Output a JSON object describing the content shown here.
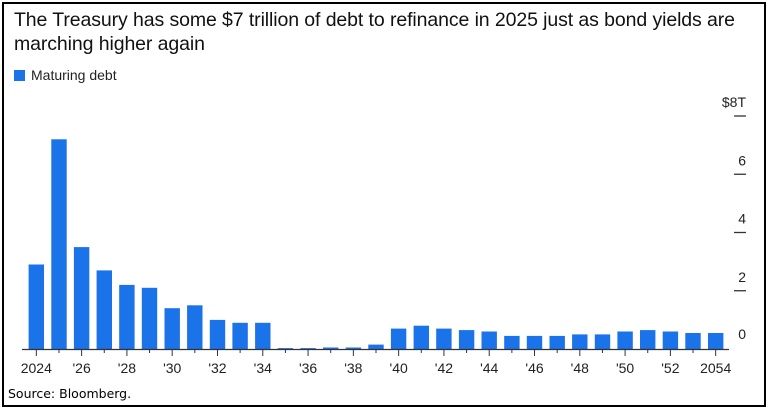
{
  "title": "The Treasury has some $7 trillion of debt to refinance in 2025 just as bond yields are marching higher again",
  "source": "Source: Bloomberg.",
  "chart_data": {
    "type": "bar",
    "legend": "Maturing debt",
    "legend_position": "top-left",
    "unit_label": "$8T",
    "color": "#1a73e8",
    "x": [
      2024,
      2025,
      2026,
      2027,
      2028,
      2029,
      2030,
      2031,
      2032,
      2033,
      2034,
      2035,
      2036,
      2037,
      2038,
      2039,
      2040,
      2041,
      2042,
      2043,
      2044,
      2045,
      2046,
      2047,
      2048,
      2049,
      2050,
      2051,
      2052,
      2053,
      2054
    ],
    "values": [
      2.9,
      7.2,
      3.5,
      2.7,
      2.2,
      2.1,
      1.4,
      1.5,
      1.0,
      0.9,
      0.9,
      0.03,
      0.03,
      0.05,
      0.05,
      0.15,
      0.7,
      0.8,
      0.7,
      0.65,
      0.6,
      0.45,
      0.45,
      0.45,
      0.5,
      0.5,
      0.6,
      0.65,
      0.6,
      0.55,
      0.55
    ],
    "x_tick_labels": [
      "2024",
      "'26",
      "'28",
      "'30",
      "'32",
      "'34",
      "'36",
      "'38",
      "'40",
      "'42",
      "'44",
      "'46",
      "'48",
      "'50",
      "'52",
      "2054"
    ],
    "y_ticks": [
      0,
      2,
      4,
      6,
      8
    ],
    "y_tick_labels": [
      "0",
      "2",
      "4",
      "6",
      "$8T"
    ],
    "ylim": [
      0,
      8
    ],
    "y_axis_side": "right",
    "grid": false
  }
}
